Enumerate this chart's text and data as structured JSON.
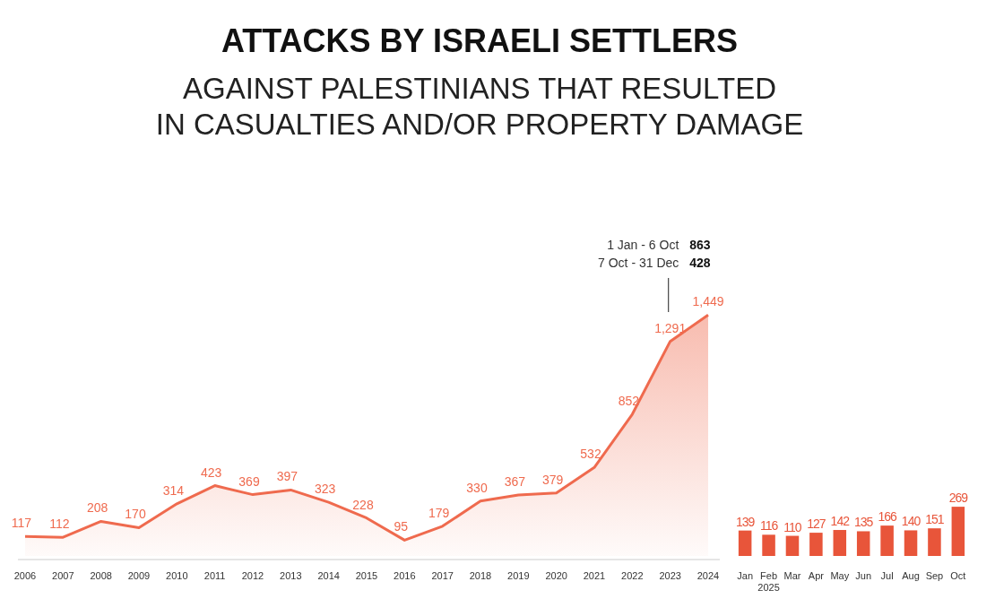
{
  "chart_data": [
    {
      "type": "area",
      "title": "ATTACKS BY ISRAELI SETTLERS",
      "subtitle": "AGAINST PALESTINIANS THAT RESULTED\nIN CASUALTIES AND/OR PROPERTY DAMAGE",
      "categories": [
        "2006",
        "2007",
        "2008",
        "2009",
        "2010",
        "2011",
        "2012",
        "2013",
        "2014",
        "2015",
        "2016",
        "2017",
        "2018",
        "2019",
        "2020",
        "2021",
        "2022",
        "2023",
        "2024"
      ],
      "values": [
        117,
        112,
        208,
        170,
        314,
        423,
        369,
        397,
        323,
        228,
        95,
        179,
        330,
        367,
        379,
        532,
        852,
        1291,
        1449
      ],
      "color": "#ef6a4e",
      "value_labels": [
        "117",
        "112",
        "208",
        "170",
        "314",
        "423",
        "369",
        "397",
        "323",
        "228",
        "95",
        "179",
        "330",
        "367",
        "379",
        "532",
        "852",
        "1,291",
        "1,449"
      ],
      "annotations": [
        "1 Jan - 6 Oct 863",
        "7 Oct - 31 Dec 428"
      ]
    },
    {
      "type": "bar",
      "xlabel": "2025",
      "categories": [
        "Jan",
        "Feb",
        "Mar",
        "Apr",
        "May",
        "Jun",
        "Jul",
        "Aug",
        "Sep",
        "Oct"
      ],
      "values": [
        139,
        116,
        110,
        127,
        142,
        135,
        166,
        140,
        151,
        269
      ],
      "color": "#e8553a",
      "data_labels": true
    }
  ]
}
